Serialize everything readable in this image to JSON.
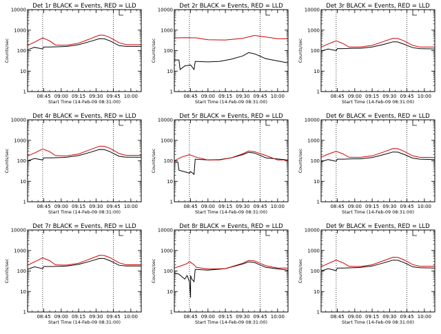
{
  "chart_data": [
    {
      "type": "line",
      "title": "Det 1r BLACK = Events, RED = LLD",
      "xlabel": "Start Time (14-Feb-09 08:31:00)",
      "ylabel": "Counts/sec",
      "x_tick_labels": [
        "08:45",
        "09:00",
        "09:15",
        "09:30",
        "09:45",
        "10:00"
      ],
      "y_tick_labels": [
        "1",
        "10",
        "100",
        "1000",
        "10000"
      ],
      "yscale": "log",
      "ylim": [
        1,
        10000
      ],
      "xlim": [
        "08:31",
        "10:09"
      ],
      "vlines": [
        "08:44",
        "09:45"
      ],
      "series": [
        {
          "name": "Events",
          "color": "#000000",
          "x": [
            "08:31",
            "08:37",
            "08:44",
            "08:45",
            "08:50",
            "09:00",
            "09:05",
            "09:15",
            "09:25",
            "09:33",
            "09:37",
            "09:42",
            "09:50",
            "09:56",
            "10:09"
          ],
          "values": [
            110,
            145,
            120,
            150,
            150,
            155,
            160,
            195,
            280,
            385,
            380,
            300,
            175,
            160,
            160
          ]
        },
        {
          "name": "LLD",
          "color": "#cc0000",
          "x": [
            "08:31",
            "08:37",
            "08:44",
            "08:50",
            "08:55",
            "09:00",
            "09:05",
            "09:15",
            "09:25",
            "09:33",
            "09:37",
            "09:42",
            "09:50",
            "09:56",
            "10:09"
          ],
          "values": [
            180,
            260,
            420,
            300,
            190,
            185,
            185,
            230,
            380,
            570,
            560,
            440,
            240,
            195,
            195
          ]
        }
      ]
    },
    {
      "type": "line",
      "title": "Det 2r BLACK = Events, RED = LLD",
      "xlabel": "Start Time (14-Feb-09 08:31:00)",
      "ylabel": "Counts/sec",
      "x_tick_labels": [
        "08:45",
        "09:00",
        "09:15",
        "09:30",
        "09:45",
        "10:00"
      ],
      "y_tick_labels": [
        "1",
        "10",
        "100",
        "1000",
        "10000"
      ],
      "yscale": "log",
      "ylim": [
        1,
        10000
      ],
      "xlim": [
        "08:31",
        "10:09"
      ],
      "vlines": [
        "08:44",
        "09:45"
      ],
      "series": [
        {
          "name": "Events",
          "color": "#000000",
          "x": [
            "08:31",
            "08:35",
            "08:36",
            "08:40",
            "08:45",
            "08:48",
            "08:49",
            "09:00",
            "09:10",
            "09:20",
            "09:30",
            "09:35",
            "09:40",
            "09:50",
            "10:09"
          ],
          "values": [
            35,
            35,
            12,
            18,
            20,
            12,
            30,
            28,
            30,
            38,
            55,
            80,
            70,
            40,
            25
          ]
        },
        {
          "name": "LLD",
          "color": "#cc0000",
          "x": [
            "08:31",
            "08:40",
            "08:50",
            "09:00",
            "09:15",
            "09:30",
            "09:40",
            "09:50",
            "10:00",
            "10:09"
          ],
          "values": [
            420,
            430,
            420,
            340,
            330,
            400,
            550,
            460,
            380,
            380
          ]
        }
      ]
    },
    {
      "type": "line",
      "title": "Det 3r BLACK = Events, RED = LLD",
      "xlabel": "Start Time (14-Feb-09 08:31:00)",
      "ylabel": "Counts/sec",
      "x_tick_labels": [
        "08:45",
        "09:00",
        "09:15",
        "09:30",
        "09:45",
        "10:00"
      ],
      "y_tick_labels": [
        "1",
        "10",
        "100",
        "1000",
        "10000"
      ],
      "yscale": "log",
      "ylim": [
        1,
        10000
      ],
      "xlim": [
        "08:31",
        "10:09"
      ],
      "vlines": [
        "08:44",
        "09:45"
      ],
      "series": [
        {
          "name": "Events",
          "color": "#000000",
          "x": [
            "08:31",
            "08:37",
            "08:44",
            "08:45",
            "08:50",
            "09:00",
            "09:05",
            "09:15",
            "09:25",
            "09:33",
            "09:37",
            "09:42",
            "09:50",
            "09:56",
            "10:09"
          ],
          "values": [
            95,
            120,
            100,
            125,
            125,
            130,
            130,
            150,
            200,
            270,
            265,
            210,
            140,
            125,
            120
          ]
        },
        {
          "name": "LLD",
          "color": "#cc0000",
          "x": [
            "08:31",
            "08:37",
            "08:44",
            "08:50",
            "08:55",
            "09:00",
            "09:05",
            "09:15",
            "09:25",
            "09:33",
            "09:37",
            "09:42",
            "09:50",
            "09:56",
            "10:09"
          ],
          "values": [
            150,
            210,
            300,
            220,
            150,
            150,
            150,
            180,
            280,
            400,
            390,
            310,
            180,
            150,
            150
          ]
        }
      ]
    },
    {
      "type": "line",
      "title": "Det 4r BLACK = Events, RED = LLD",
      "xlabel": "Start Time (14-Feb-09 08:31:00)",
      "ylabel": "Counts/sec",
      "x_tick_labels": [
        "08:45",
        "09:00",
        "09:15",
        "09:30",
        "09:45",
        "10:00"
      ],
      "y_tick_labels": [
        "1",
        "10",
        "100",
        "1000",
        "10000"
      ],
      "yscale": "log",
      "ylim": [
        1,
        10000
      ],
      "xlim": [
        "08:31",
        "10:09"
      ],
      "vlines": [
        "08:44",
        "09:45"
      ],
      "series": [
        {
          "name": "Events",
          "color": "#000000",
          "x": [
            "08:31",
            "08:37",
            "08:44",
            "08:45",
            "08:50",
            "09:00",
            "09:05",
            "09:15",
            "09:25",
            "09:33",
            "09:37",
            "09:42",
            "09:50",
            "09:56",
            "10:09"
          ],
          "values": [
            100,
            130,
            110,
            140,
            140,
            145,
            150,
            180,
            260,
            360,
            355,
            280,
            165,
            150,
            150
          ]
        },
        {
          "name": "LLD",
          "color": "#cc0000",
          "x": [
            "08:31",
            "08:37",
            "08:44",
            "08:50",
            "08:55",
            "09:00",
            "09:05",
            "09:15",
            "09:25",
            "09:33",
            "09:37",
            "09:42",
            "09:50",
            "09:56",
            "10:09"
          ],
          "values": [
            170,
            240,
            380,
            280,
            180,
            175,
            175,
            215,
            350,
            520,
            510,
            410,
            225,
            185,
            185
          ]
        }
      ]
    },
    {
      "type": "line",
      "title": "Det 5r BLACK = Events, RED = LLD",
      "xlabel": "Start Time (14-Feb-09 08:31:00)",
      "ylabel": "Counts/sec",
      "x_tick_labels": [
        "08:45",
        "09:00",
        "09:15",
        "09:30",
        "09:45",
        "10:00"
      ],
      "y_tick_labels": [
        "1",
        "10",
        "100",
        "1000",
        "10000"
      ],
      "yscale": "log",
      "ylim": [
        1,
        10000
      ],
      "xlim": [
        "08:31",
        "10:09"
      ],
      "vlines": [
        "08:44",
        "09:45"
      ],
      "series": [
        {
          "name": "Events",
          "color": "#000000",
          "x": [
            "08:31",
            "08:34",
            "08:35",
            "08:44",
            "08:45",
            "08:48",
            "08:49",
            "09:00",
            "09:10",
            "09:20",
            "09:30",
            "09:35",
            "09:40",
            "09:50",
            "10:09"
          ],
          "values": [
            90,
            85,
            35,
            25,
            30,
            22,
            120,
            110,
            115,
            140,
            200,
            260,
            240,
            140,
            110
          ]
        },
        {
          "name": "LLD",
          "color": "#cc0000",
          "x": [
            "08:31",
            "08:37",
            "08:44",
            "08:50",
            "09:00",
            "09:10",
            "09:20",
            "09:30",
            "09:35",
            "09:40",
            "09:50",
            "10:00",
            "10:09"
          ],
          "values": [
            100,
            150,
            200,
            150,
            110,
            110,
            140,
            220,
            300,
            280,
            180,
            110,
            110
          ]
        }
      ]
    },
    {
      "type": "line",
      "title": "Det 6r BLACK = Events, RED = LLD",
      "xlabel": "Start Time (14-Feb-09 08:31:00)",
      "ylabel": "Counts/sec",
      "x_tick_labels": [
        "08:45",
        "09:00",
        "09:15",
        "09:30",
        "09:45",
        "10:00"
      ],
      "y_tick_labels": [
        "1",
        "10",
        "100",
        "1000",
        "10000"
      ],
      "yscale": "log",
      "ylim": [
        1,
        10000
      ],
      "xlim": [
        "08:31",
        "10:09"
      ],
      "vlines": [
        "08:44",
        "09:45"
      ],
      "series": [
        {
          "name": "Events",
          "color": "#000000",
          "x": [
            "08:31",
            "08:37",
            "08:44",
            "08:45",
            "08:50",
            "09:00",
            "09:05",
            "09:15",
            "09:25",
            "09:33",
            "09:37",
            "09:42",
            "09:50",
            "09:56",
            "10:09"
          ],
          "values": [
            90,
            115,
            95,
            120,
            120,
            125,
            125,
            145,
            200,
            270,
            265,
            210,
            135,
            120,
            115
          ]
        },
        {
          "name": "LLD",
          "color": "#cc0000",
          "x": [
            "08:31",
            "08:37",
            "08:44",
            "08:50",
            "08:55",
            "09:00",
            "09:05",
            "09:15",
            "09:25",
            "09:33",
            "09:37",
            "09:42",
            "09:50",
            "09:56",
            "10:09"
          ],
          "values": [
            150,
            210,
            290,
            215,
            150,
            148,
            148,
            175,
            270,
            400,
            390,
            300,
            175,
            148,
            145
          ]
        }
      ]
    },
    {
      "type": "line",
      "title": "Det 7r BLACK = Events, RED = LLD",
      "xlabel": "Start Time (14-Feb-09 08:31:00)",
      "ylabel": "Counts/sec",
      "x_tick_labels": [
        "08:45",
        "09:00",
        "09:15",
        "09:30",
        "09:45",
        "10:00"
      ],
      "y_tick_labels": [
        "1",
        "10",
        "100",
        "1000",
        "10000"
      ],
      "yscale": "log",
      "ylim": [
        1,
        10000
      ],
      "xlim": [
        "08:31",
        "10:09"
      ],
      "vlines": [
        "08:44",
        "09:45"
      ],
      "series": [
        {
          "name": "Events",
          "color": "#000000",
          "x": [
            "08:31",
            "08:37",
            "08:44",
            "08:45",
            "08:50",
            "09:00",
            "09:05",
            "09:15",
            "09:25",
            "09:33",
            "09:37",
            "09:42",
            "09:50",
            "09:56",
            "10:09"
          ],
          "values": [
            120,
            160,
            130,
            165,
            165,
            170,
            175,
            210,
            300,
            410,
            405,
            320,
            190,
            175,
            175
          ]
        },
        {
          "name": "LLD",
          "color": "#cc0000",
          "x": [
            "08:31",
            "08:37",
            "08:44",
            "08:50",
            "08:55",
            "09:00",
            "09:05",
            "09:15",
            "09:25",
            "09:33",
            "09:37",
            "09:42",
            "09:50",
            "09:56",
            "10:09"
          ],
          "values": [
            190,
            280,
            440,
            320,
            200,
            195,
            195,
            240,
            390,
            580,
            570,
            450,
            250,
            200,
            200
          ]
        }
      ]
    },
    {
      "type": "line",
      "title": "Det 8r BLACK = Events, RED = LLD",
      "xlabel": "Start Time (14-Feb-09 08:31:00)",
      "ylabel": "Counts/sec",
      "x_tick_labels": [
        "08:45",
        "09:00",
        "09:15",
        "09:30",
        "09:45",
        "10:00"
      ],
      "y_tick_labels": [
        "1",
        "10",
        "100",
        "1000",
        "10000"
      ],
      "yscale": "log",
      "ylim": [
        1,
        10000
      ],
      "xlim": [
        "08:31",
        "10:09"
      ],
      "vlines": [
        "08:44",
        "09:45"
      ],
      "series": [
        {
          "name": "Events",
          "color": "#000000",
          "x": [
            "08:31",
            "08:35",
            "08:38",
            "08:40",
            "08:42",
            "08:44",
            "08:45",
            "08:45",
            "08:46",
            "08:48",
            "08:49",
            "09:00",
            "09:15",
            "09:30",
            "09:35",
            "09:40",
            "09:50",
            "10:09"
          ],
          "values": [
            80,
            70,
            50,
            40,
            60,
            30,
            5,
            60,
            40,
            30,
            120,
            110,
            130,
            220,
            280,
            260,
            150,
            110
          ]
        },
        {
          "name": "LLD",
          "color": "#cc0000",
          "x": [
            "08:31",
            "08:37",
            "08:42",
            "08:44",
            "08:46",
            "08:48",
            "08:50",
            "09:00",
            "09:15",
            "09:30",
            "09:35",
            "09:40",
            "09:50",
            "10:00",
            "10:09"
          ],
          "values": [
            140,
            180,
            230,
            290,
            240,
            200,
            150,
            125,
            130,
            240,
            330,
            310,
            180,
            140,
            140
          ]
        }
      ]
    },
    {
      "type": "line",
      "title": "Det 9r BLACK = Events, RED = LLD",
      "xlabel": "Start Time (14-Feb-09 08:31:00)",
      "ylabel": "Counts/sec",
      "x_tick_labels": [
        "08:45",
        "09:00",
        "09:15",
        "09:30",
        "09:45",
        "10:00"
      ],
      "y_tick_labels": [
        "1",
        "10",
        "100",
        "1000",
        "10000"
      ],
      "yscale": "log",
      "ylim": [
        1,
        10000
      ],
      "xlim": [
        "08:31",
        "10:09"
      ],
      "vlines": [
        "08:44",
        "09:45"
      ],
      "series": [
        {
          "name": "Events",
          "color": "#000000",
          "x": [
            "08:31",
            "08:37",
            "08:44",
            "08:45",
            "08:50",
            "09:00",
            "09:05",
            "09:15",
            "09:25",
            "09:33",
            "09:37",
            "09:42",
            "09:50",
            "09:56",
            "10:09"
          ],
          "values": [
            100,
            130,
            105,
            140,
            140,
            145,
            150,
            175,
            250,
            340,
            335,
            265,
            160,
            145,
            140
          ]
        },
        {
          "name": "LLD",
          "color": "#cc0000",
          "x": [
            "08:31",
            "08:37",
            "08:44",
            "08:50",
            "08:55",
            "09:00",
            "09:05",
            "09:15",
            "09:25",
            "09:33",
            "09:37",
            "09:42",
            "09:50",
            "09:56",
            "10:09"
          ],
          "values": [
            160,
            230,
            340,
            250,
            170,
            165,
            165,
            200,
            320,
            470,
            460,
            360,
            205,
            170,
            170
          ]
        }
      ]
    }
  ]
}
